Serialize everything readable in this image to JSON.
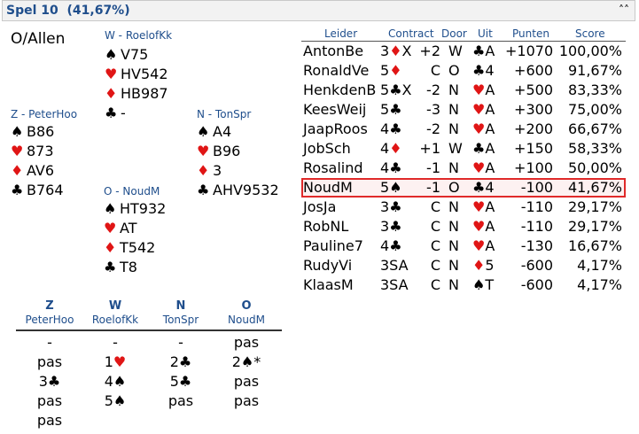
{
  "header": {
    "title": "Spel 10  (41,67%)",
    "collapse_icon": "double-chevron-up-icon"
  },
  "deal": {
    "dealer_vuln": "O/Allen",
    "west": {
      "label": "W - RoelofKk",
      "spades": "V75",
      "hearts": "HV542",
      "diamonds": "HB987",
      "clubs": "-"
    },
    "south": {
      "label": "Z - PeterHoo",
      "spades": "B86",
      "hearts": "873",
      "diamonds": "AV6",
      "clubs": "B764"
    },
    "north": {
      "label": "N - TonSpr",
      "spades": "A4",
      "hearts": "B96",
      "diamonds": "3",
      "clubs": "AHV9532"
    },
    "east": {
      "label": "O - NoudM",
      "spades": "HT932",
      "hearts": "AT",
      "diamonds": "T542",
      "clubs": "T8"
    }
  },
  "suits": {
    "spades": "♠",
    "hearts": "♥",
    "diamonds": "♦",
    "clubs": "♣"
  },
  "results": {
    "headers": {
      "leader": "Leider",
      "contract": "Contract",
      "door": "Door",
      "uit": "Uit",
      "punten": "Punten",
      "score": "Score"
    },
    "rows": [
      {
        "name": "AntonBe",
        "level": "3",
        "suit": "♦",
        "suit_color": "red",
        "extra": "X",
        "result": "+2",
        "door": "W",
        "lead_suit": "♣",
        "lead_color": "black",
        "lead_card": "A",
        "points": "+1070",
        "score": "100,00%"
      },
      {
        "name": "RonaldVe",
        "level": "5",
        "suit": "♦",
        "suit_color": "red",
        "extra": "",
        "result": "C",
        "door": "O",
        "lead_suit": "♣",
        "lead_color": "black",
        "lead_card": "4",
        "points": "+600",
        "score": "91,67%"
      },
      {
        "name": "HenkdenB",
        "level": "5",
        "suit": "♣",
        "suit_color": "black",
        "extra": "X",
        "result": "-2",
        "door": "N",
        "lead_suit": "♥",
        "lead_color": "red",
        "lead_card": "A",
        "points": "+500",
        "score": "83,33%"
      },
      {
        "name": "KeesWeij",
        "level": "5",
        "suit": "♣",
        "suit_color": "black",
        "extra": "",
        "result": "-3",
        "door": "N",
        "lead_suit": "♥",
        "lead_color": "red",
        "lead_card": "A",
        "points": "+300",
        "score": "75,00%"
      },
      {
        "name": "JaapRoos",
        "level": "4",
        "suit": "♣",
        "suit_color": "black",
        "extra": "",
        "result": "-2",
        "door": "N",
        "lead_suit": "♥",
        "lead_color": "red",
        "lead_card": "A",
        "points": "+200",
        "score": "66,67%"
      },
      {
        "name": "JobSch",
        "level": "4",
        "suit": "♦",
        "suit_color": "red",
        "extra": "",
        "result": "+1",
        "door": "W",
        "lead_suit": "♣",
        "lead_color": "black",
        "lead_card": "A",
        "points": "+150",
        "score": "58,33%"
      },
      {
        "name": "Rosalind",
        "level": "4",
        "suit": "♣",
        "suit_color": "black",
        "extra": "",
        "result": "-1",
        "door": "N",
        "lead_suit": "♥",
        "lead_color": "red",
        "lead_card": "A",
        "points": "+100",
        "score": "50,00%"
      },
      {
        "name": "NoudM",
        "level": "5",
        "suit": "♠",
        "suit_color": "black",
        "extra": "",
        "result": "-1",
        "door": "O",
        "lead_suit": "♣",
        "lead_color": "black",
        "lead_card": "4",
        "points": "-100",
        "score": "41,67%",
        "highlight": true
      },
      {
        "name": "JosJa",
        "level": "3",
        "suit": "♣",
        "suit_color": "black",
        "extra": "",
        "result": "C",
        "door": "N",
        "lead_suit": "♥",
        "lead_color": "red",
        "lead_card": "A",
        "points": "-110",
        "score": "29,17%"
      },
      {
        "name": "RobNL",
        "level": "3",
        "suit": "♣",
        "suit_color": "black",
        "extra": "",
        "result": "C",
        "door": "N",
        "lead_suit": "♥",
        "lead_color": "red",
        "lead_card": "A",
        "points": "-110",
        "score": "29,17%"
      },
      {
        "name": "Pauline7",
        "level": "4",
        "suit": "♣",
        "suit_color": "black",
        "extra": "",
        "result": "C",
        "door": "N",
        "lead_suit": "♥",
        "lead_color": "red",
        "lead_card": "A",
        "points": "-130",
        "score": "16,67%"
      },
      {
        "name": "RudyVi",
        "level": "3SA",
        "suit": "",
        "suit_color": "black",
        "extra": "",
        "result": "C",
        "door": "N",
        "lead_suit": "♦",
        "lead_color": "red",
        "lead_card": "5",
        "points": "-600",
        "score": "4,17%"
      },
      {
        "name": "KlaasM",
        "level": "3SA",
        "suit": "",
        "suit_color": "black",
        "extra": "",
        "result": "C",
        "door": "N",
        "lead_suit": "♠",
        "lead_color": "black",
        "lead_card": "T",
        "points": "-600",
        "score": "4,17%"
      }
    ]
  },
  "bidding": {
    "columns": [
      {
        "seat": "Z",
        "player": "PeterHoo"
      },
      {
        "seat": "W",
        "player": "RoelofKk"
      },
      {
        "seat": "N",
        "player": "TonSpr"
      },
      {
        "seat": "O",
        "player": "NoudM"
      }
    ],
    "rows": [
      [
        {
          "text": "-"
        },
        {
          "text": "-"
        },
        {
          "text": "-"
        },
        {
          "text": "pas"
        }
      ],
      [
        {
          "text": "pas"
        },
        {
          "text": "1",
          "suit": "♥",
          "color": "red"
        },
        {
          "text": "2",
          "suit": "♣",
          "color": "black"
        },
        {
          "text": "2",
          "suit": "♠",
          "color": "black",
          "post": "*"
        }
      ],
      [
        {
          "text": "3",
          "suit": "♣",
          "color": "black"
        },
        {
          "text": "4",
          "suit": "♠",
          "color": "black"
        },
        {
          "text": "5",
          "suit": "♣",
          "color": "black"
        },
        {
          "text": "pas"
        }
      ],
      [
        {
          "text": "pas"
        },
        {
          "text": "5",
          "suit": "♠",
          "color": "black"
        },
        {
          "text": "pas"
        },
        {
          "text": "pas"
        }
      ],
      [
        {
          "text": "pas"
        },
        {
          "text": ""
        },
        {
          "text": ""
        },
        {
          "text": ""
        }
      ]
    ]
  },
  "colors": {
    "accent": "#1f4e8c",
    "red_suit": "#e01515",
    "highlight_border": "#e02a2a"
  }
}
